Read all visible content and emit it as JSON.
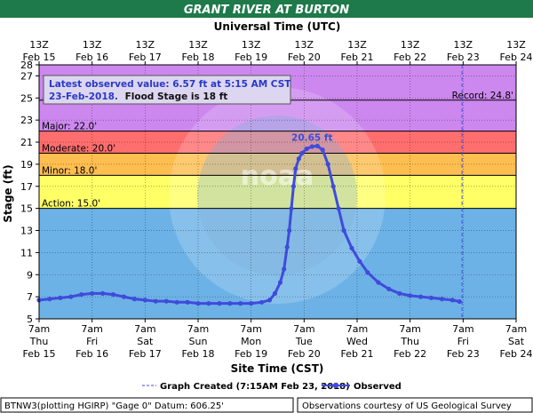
{
  "title": "GRANT RIVER AT BURTON",
  "top_axis_label": "Universal Time (UTC)",
  "top_ticks": [
    {
      "line1": "13Z",
      "line2": "Feb 15"
    },
    {
      "line1": "13Z",
      "line2": "Feb 16"
    },
    {
      "line1": "13Z",
      "line2": "Feb 17"
    },
    {
      "line1": "13Z",
      "line2": "Feb 18"
    },
    {
      "line1": "13Z",
      "line2": "Feb 19"
    },
    {
      "line1": "13Z",
      "line2": "Feb 20"
    },
    {
      "line1": "13Z",
      "line2": "Feb 21"
    },
    {
      "line1": "13Z",
      "line2": "Feb 22"
    },
    {
      "line1": "13Z",
      "line2": "Feb 23"
    },
    {
      "line1": "13Z",
      "line2": "Feb 24"
    }
  ],
  "bottom_ticks": [
    {
      "line1": "7am",
      "line2": "Thu",
      "line3": "Feb 15"
    },
    {
      "line1": "7am",
      "line2": "Fri",
      "line3": "Feb 16"
    },
    {
      "line1": "7am",
      "line2": "Sat",
      "line3": "Feb 17"
    },
    {
      "line1": "7am",
      "line2": "Sun",
      "line3": "Feb 18"
    },
    {
      "line1": "7am",
      "line2": "Mon",
      "line3": "Feb 19"
    },
    {
      "line1": "7am",
      "line2": "Tue",
      "line3": "Feb 20"
    },
    {
      "line1": "7am",
      "line2": "Wed",
      "line3": "Feb 21"
    },
    {
      "line1": "7am",
      "line2": "Thu",
      "line3": "Feb 22"
    },
    {
      "line1": "7am",
      "line2": "Fri",
      "line3": "Feb 23"
    },
    {
      "line1": "7am",
      "line2": "Sat",
      "line3": "Feb 24"
    }
  ],
  "info_box": {
    "line1": "Latest observed value: 6.57 ft at 5:15 AM CST",
    "line2_date": "23-Feb-2018.",
    "line2_rest": "Flood Stage is 18 ft"
  },
  "footer": {
    "left": "BTNW3(plotting HGIRP) \"Gage 0\" Datum: 606.25'",
    "right": "Observations courtesy of US Geological Survey"
  },
  "legend": {
    "created_label": "Graph Created (7:15AM Feb 23, 2018)",
    "observed_label": "Observed"
  },
  "colors": {
    "title_bg": "#1e7a4a",
    "grid_bg": "#6db2e6",
    "major": "#ff6e6e",
    "moderate_band": "#f0a0a0",
    "minor": "#ffbe50",
    "action": "#ffff66",
    "record_band": "#d291f0",
    "upper_band": "#cc88ee",
    "series": "#3f4bdc",
    "watermark": "#7fb0d8"
  },
  "chart_data": {
    "type": "line",
    "title": "GRANT RIVER AT BURTON",
    "xlabel": "Site Time (CST)",
    "ylabel": "Stage (ft)",
    "x_unit": "days since 7am Thu Feb 15, 2018 CST",
    "xlim": [
      0,
      9
    ],
    "ylim": [
      5,
      28
    ],
    "yticks": [
      5,
      7,
      9,
      11,
      13,
      15,
      17,
      19,
      21,
      23,
      25,
      27,
      28
    ],
    "thresholds": [
      {
        "name": "Action",
        "value": 15.0,
        "label": "Action: 15.0'"
      },
      {
        "name": "Minor",
        "value": 18.0,
        "label": "Minor: 18.0'"
      },
      {
        "name": "Moderate",
        "value": 20.0,
        "label": "Moderate: 20.0'"
      },
      {
        "name": "Major",
        "value": 22.0,
        "label": "Major: 22.0'"
      },
      {
        "name": "Record",
        "value": 24.8,
        "label": "Record: 24.8'"
      }
    ],
    "peak_label": "20.65 ft",
    "graph_created_x": 7.98,
    "series": [
      {
        "name": "Observed",
        "points": [
          [
            0.0,
            6.7
          ],
          [
            0.2,
            6.8
          ],
          [
            0.4,
            6.9
          ],
          [
            0.6,
            7.0
          ],
          [
            0.8,
            7.2
          ],
          [
            1.0,
            7.3
          ],
          [
            1.2,
            7.3
          ],
          [
            1.4,
            7.2
          ],
          [
            1.6,
            7.0
          ],
          [
            1.8,
            6.8
          ],
          [
            2.0,
            6.7
          ],
          [
            2.2,
            6.6
          ],
          [
            2.4,
            6.6
          ],
          [
            2.6,
            6.5
          ],
          [
            2.8,
            6.5
          ],
          [
            3.0,
            6.4
          ],
          [
            3.2,
            6.4
          ],
          [
            3.4,
            6.4
          ],
          [
            3.6,
            6.4
          ],
          [
            3.8,
            6.4
          ],
          [
            4.0,
            6.4
          ],
          [
            4.2,
            6.5
          ],
          [
            4.35,
            6.7
          ],
          [
            4.45,
            7.3
          ],
          [
            4.55,
            8.3
          ],
          [
            4.62,
            9.5
          ],
          [
            4.68,
            11.5
          ],
          [
            4.72,
            13.0
          ],
          [
            4.76,
            15.0
          ],
          [
            4.8,
            17.0
          ],
          [
            4.84,
            18.6
          ],
          [
            4.9,
            19.5
          ],
          [
            4.96,
            20.0
          ],
          [
            5.05,
            20.4
          ],
          [
            5.15,
            20.6
          ],
          [
            5.25,
            20.65
          ],
          [
            5.35,
            20.3
          ],
          [
            5.45,
            19.0
          ],
          [
            5.55,
            17.0
          ],
          [
            5.65,
            15.0
          ],
          [
            5.75,
            13.0
          ],
          [
            5.9,
            11.4
          ],
          [
            6.05,
            10.2
          ],
          [
            6.2,
            9.2
          ],
          [
            6.4,
            8.3
          ],
          [
            6.6,
            7.7
          ],
          [
            6.8,
            7.3
          ],
          [
            7.0,
            7.1
          ],
          [
            7.2,
            7.0
          ],
          [
            7.4,
            6.9
          ],
          [
            7.6,
            6.8
          ],
          [
            7.8,
            6.7
          ],
          [
            7.93,
            6.57
          ]
        ]
      }
    ]
  }
}
